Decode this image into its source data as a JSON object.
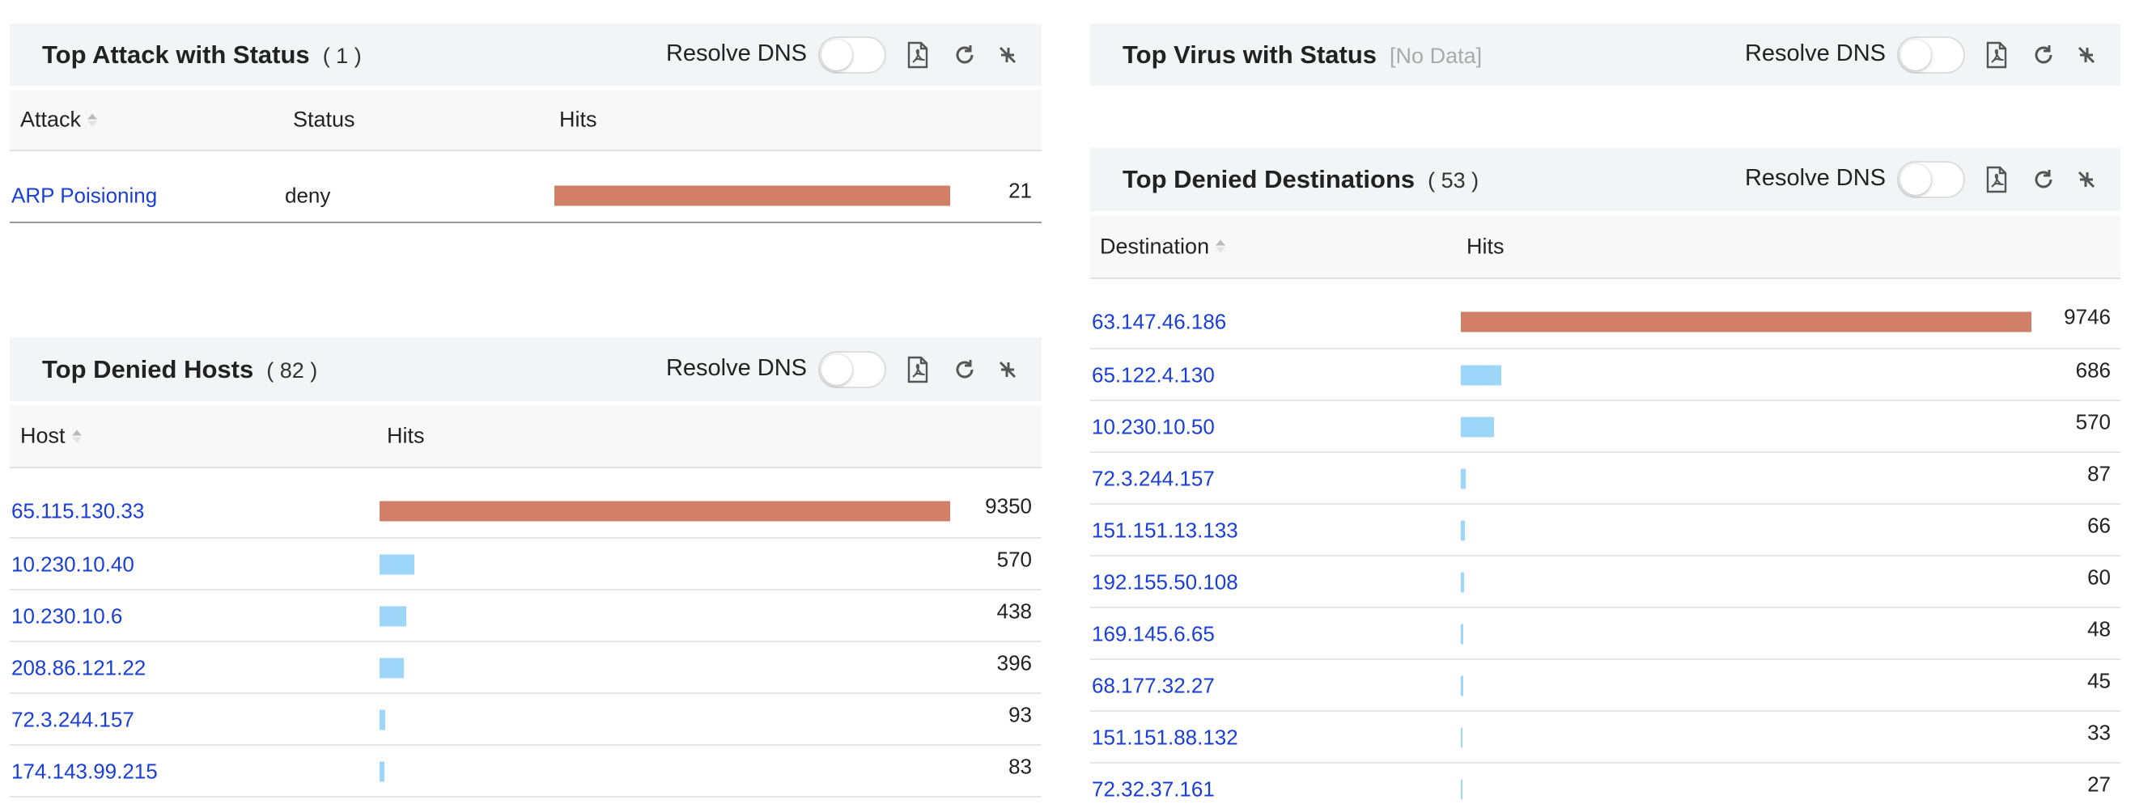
{
  "panels": [
    {
      "title": "Top Attack with Status",
      "count": "( 1 )",
      "toggle_label": "Resolve DNS",
      "columns": [
        "Attack",
        "Status",
        "Hits"
      ],
      "rows": [
        [
          "ARP Poisioning",
          "deny",
          21
        ]
      ]
    },
    {
      "title": "Top Virus with Status",
      "count": "[No Data]",
      "toggle_label": "Resolve DNS"
    },
    {
      "title": "Top Denied Hosts",
      "count": "( 82 )",
      "toggle_label": "Resolve DNS",
      "columns": [
        "Host",
        "Hits"
      ],
      "rows": [
        [
          "65.115.130.33",
          9350
        ],
        [
          "10.230.10.40",
          570
        ],
        [
          "10.230.10.6",
          438
        ],
        [
          "208.86.121.22",
          396
        ],
        [
          "72.3.244.157",
          93
        ],
        [
          "174.143.99.215",
          83
        ]
      ]
    },
    {
      "title": "Top Denied Destinations",
      "count": "( 53 )",
      "toggle_label": "Resolve DNS",
      "columns": [
        "Destination",
        "Hits"
      ],
      "rows": [
        [
          "63.147.46.186",
          9746
        ],
        [
          "65.122.4.130",
          686
        ],
        [
          "10.230.10.50",
          570
        ],
        [
          "72.3.244.157",
          87
        ],
        [
          "151.151.13.133",
          66
        ],
        [
          "192.155.50.108",
          60
        ],
        [
          "169.145.6.65",
          48
        ],
        [
          "68.177.32.27",
          45
        ],
        [
          "151.151.88.132",
          33
        ],
        [
          "72.32.37.161",
          27
        ]
      ]
    }
  ]
}
